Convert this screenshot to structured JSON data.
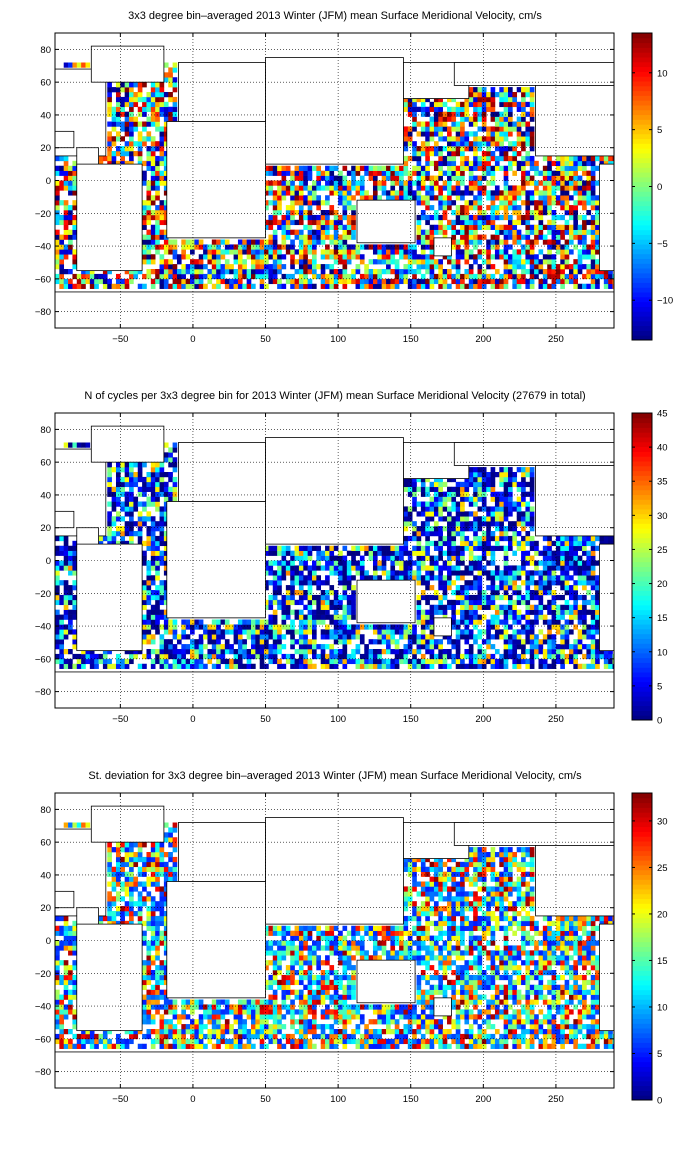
{
  "panels": [
    {
      "title": "3x3 degree bin–averaged 2013 Winter (JFM) mean Surface Meridional Velocity, cm/s"
    },
    {
      "title": "N of cycles per 3x3 degree bin for 2013 Winter (JFM) mean Surface Meridional Velocity (27679 in total)"
    },
    {
      "title": "St. deviation for 3x3 degree bin–averaged 2013 Winter (JFM) mean Surface Meridional Velocity, cm/s"
    }
  ],
  "chart_data": [
    {
      "type": "heatmap",
      "title": "3x3 degree bin–averaged 2013 Winter (JFM) mean Surface Meridional Velocity, cm/s",
      "xlim": [
        -95,
        290
      ],
      "ylim": [
        -90,
        90
      ],
      "xticks": [
        -50,
        0,
        50,
        100,
        150,
        200,
        250
      ],
      "yticks": [
        80,
        60,
        40,
        20,
        0,
        -20,
        -40,
        -60,
        -80
      ],
      "grid": true,
      "bin_size_deg": 3,
      "colormap": "jet",
      "clim": [
        -13.5,
        13.5
      ],
      "colorbar_ticks": [
        10,
        5,
        0,
        -5,
        -10
      ],
      "colorbar_tick_labels": [
        "10",
        "5",
        "0",
        "−5",
        "−10"
      ]
    },
    {
      "type": "heatmap",
      "title": "N of cycles per 3x3 degree bin for 2013 Winter (JFM) mean Surface Meridional Velocity (27679 in total)",
      "xlim": [
        -95,
        290
      ],
      "ylim": [
        -90,
        90
      ],
      "xticks": [
        -50,
        0,
        50,
        100,
        150,
        200,
        250
      ],
      "yticks": [
        80,
        60,
        40,
        20,
        0,
        -20,
        -40,
        -60,
        -80
      ],
      "grid": true,
      "bin_size_deg": 3,
      "colormap": "jet",
      "clim": [
        0,
        45
      ],
      "total": 27679,
      "colorbar_ticks": [
        45,
        40,
        35,
        30,
        25,
        20,
        15,
        10,
        5,
        0
      ],
      "colorbar_tick_labels": [
        "45",
        "40",
        "35",
        "30",
        "25",
        "20",
        "15",
        "10",
        "5",
        "0"
      ]
    },
    {
      "type": "heatmap",
      "title": "St. deviation for 3x3 degree bin–averaged 2013 Winter (JFM) mean Surface Meridional Velocity, cm/s",
      "xlim": [
        -95,
        290
      ],
      "ylim": [
        -90,
        90
      ],
      "xticks": [
        -50,
        0,
        50,
        100,
        150,
        200,
        250
      ],
      "yticks": [
        80,
        60,
        40,
        20,
        0,
        -20,
        -40,
        -60,
        -80
      ],
      "grid": true,
      "bin_size_deg": 3,
      "colormap": "jet",
      "clim": [
        0,
        33
      ],
      "colorbar_ticks": [
        30,
        25,
        20,
        15,
        10,
        5,
        0
      ],
      "colorbar_tick_labels": [
        "30",
        "25",
        "20",
        "15",
        "10",
        "5",
        "0"
      ]
    }
  ]
}
